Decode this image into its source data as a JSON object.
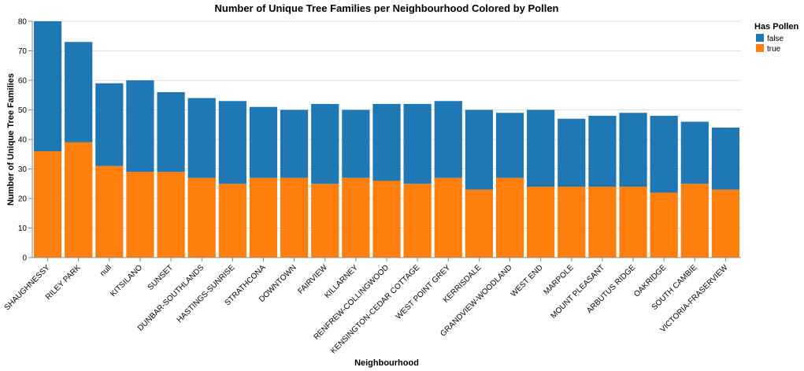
{
  "chart_data": {
    "type": "bar",
    "stacked": true,
    "title": "Number of Unique Tree Families per Neighbourhood Colored by Pollen",
    "xlabel": "Neighbourhood",
    "ylabel": "Number of Unique Tree Families",
    "ylim": [
      0,
      80
    ],
    "yticks": [
      0,
      10,
      20,
      30,
      40,
      50,
      60,
      70,
      80
    ],
    "grid": true,
    "categories": [
      "SHAUGHNESSY",
      "RILEY PARK",
      "null",
      "KITSILANO",
      "SUNSET",
      "DUNBAR-SOUTHLANDS",
      "HASTINGS-SUNRISE",
      "STRATHCONA",
      "DOWNTOWN",
      "FAIRVIEW",
      "KILLARNEY",
      "RENFREW-COLLINGWOOD",
      "KENSINGTON-CEDAR COTTAGE",
      "WEST POINT GREY",
      "KERRISDALE",
      "GRANDVIEW-WOODLAND",
      "WEST END",
      "MARPOLE",
      "MOUNT PLEASANT",
      "ARBUTUS RIDGE",
      "OAKRIDGE",
      "SOUTH CAMBIE",
      "VICTORIA-FRASERVIEW"
    ],
    "series": [
      {
        "name": "true",
        "color": "#ff7f0e",
        "values": [
          36,
          39,
          31,
          29,
          29,
          27,
          25,
          27,
          27,
          25,
          27,
          26,
          25,
          27,
          23,
          27,
          24,
          24,
          24,
          24,
          22,
          25,
          23
        ]
      },
      {
        "name": "false",
        "color": "#1f77b4",
        "values": [
          44,
          34,
          28,
          31,
          27,
          27,
          28,
          24,
          23,
          27,
          23,
          26,
          27,
          26,
          27,
          22,
          26,
          23,
          24,
          25,
          26,
          21,
          21
        ]
      }
    ],
    "legend": {
      "title": "Has Pollen",
      "position": "top-right",
      "entries": [
        {
          "label": "false",
          "color": "#1f77b4"
        },
        {
          "label": "true",
          "color": "#ff7f0e"
        }
      ]
    }
  }
}
